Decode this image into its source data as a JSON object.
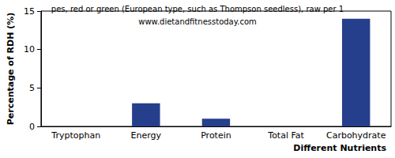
{
  "chart_data": {
    "type": "bar",
    "title": "pes, red or green (European type, such as Thompson seedless), raw per 1",
    "subtitle": "www.dietandfitnesstoday.com",
    "x_label": "Different Nutrients",
    "y_label": "Percentage of RDH (%)",
    "categories": [
      "Tryptophan",
      "Energy",
      "Protein",
      "Total Fat",
      "Carbohydrate"
    ],
    "values": [
      0,
      3,
      1,
      0,
      14
    ],
    "color": "#263f8c",
    "ylim": [
      0,
      15
    ],
    "yticks": [
      0,
      5,
      10,
      15
    ],
    "grid": false
  }
}
